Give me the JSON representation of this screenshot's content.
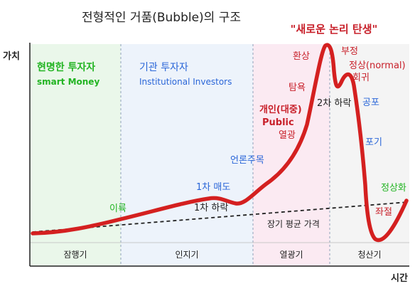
{
  "title": "전형적인 거품(Bubble)의 구조",
  "axes": {
    "y_label": "가치",
    "x_label": "시간"
  },
  "phases": [
    {
      "name": "잠행기",
      "fill": "#eaf7ea"
    },
    {
      "name": "인지기",
      "fill": "#edf3fb"
    },
    {
      "name": "열광기",
      "fill": "#fbeaf2"
    },
    {
      "name": "청산기",
      "fill": "#f4f4f4"
    }
  ],
  "investors": {
    "smart": {
      "ko": "현명한 투자자",
      "en": "smart Money",
      "color": "#22b422"
    },
    "institutional": {
      "ko": "기관 투자자",
      "en": "Institutional Investors",
      "color": "#2a66d8"
    }
  },
  "headline": "\"새로운 논리 탄생\"",
  "average_label": "장기 평균 가격",
  "annotations": {
    "takeoff": "이륙",
    "first_sell": "1차 매도",
    "first_drop": "1차 하락",
    "media": "언론주목",
    "public_ko": "개인(대중)",
    "public_en": "Public",
    "euphoria": "열광",
    "greed": "탐욕",
    "delusion": "환상",
    "second_drop": "2차 하락",
    "denial": "부정",
    "return_normal": "정상(normal)",
    "return_word": "회귀",
    "fear": "공포",
    "capitulation": "포기",
    "despair": "좌절",
    "normalize": "정상화"
  },
  "colors": {
    "curve": "#d42020",
    "green": "#22b422",
    "blue": "#2a66d8",
    "red": "#c8202a",
    "black": "#222222"
  }
}
